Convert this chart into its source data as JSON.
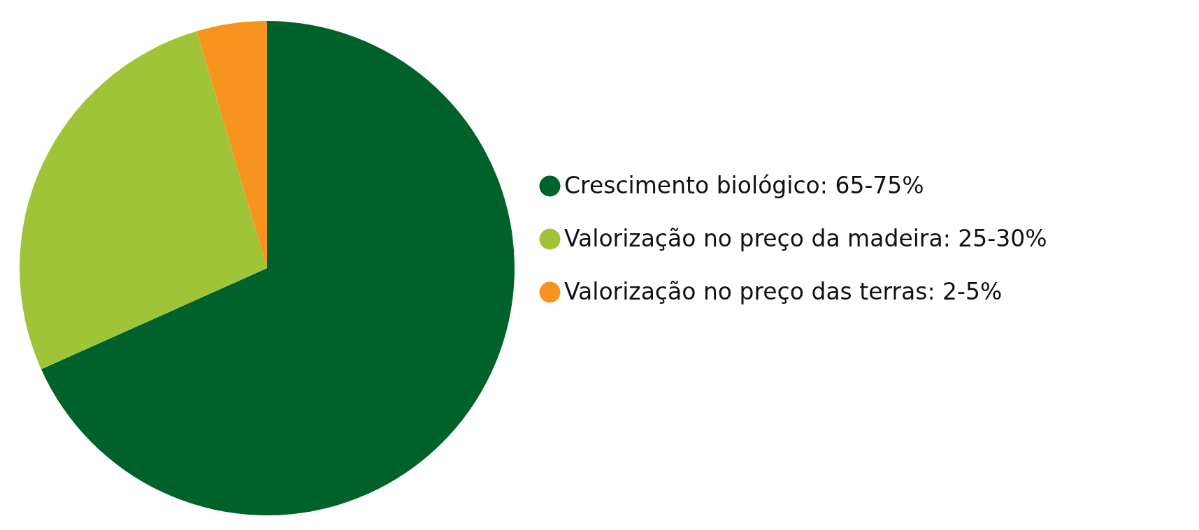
{
  "chart_data": {
    "type": "pie",
    "categories": [
      "Crescimento biológico: 65-75%",
      "Valorização no preço da madeira: 25-30%",
      "Valorização no preço das terras: 2-5%"
    ],
    "values": [
      68.3,
      27.1,
      4.6
    ],
    "colors": [
      "#00622b",
      "#9fc437",
      "#f7941d"
    ],
    "legend": "right"
  }
}
